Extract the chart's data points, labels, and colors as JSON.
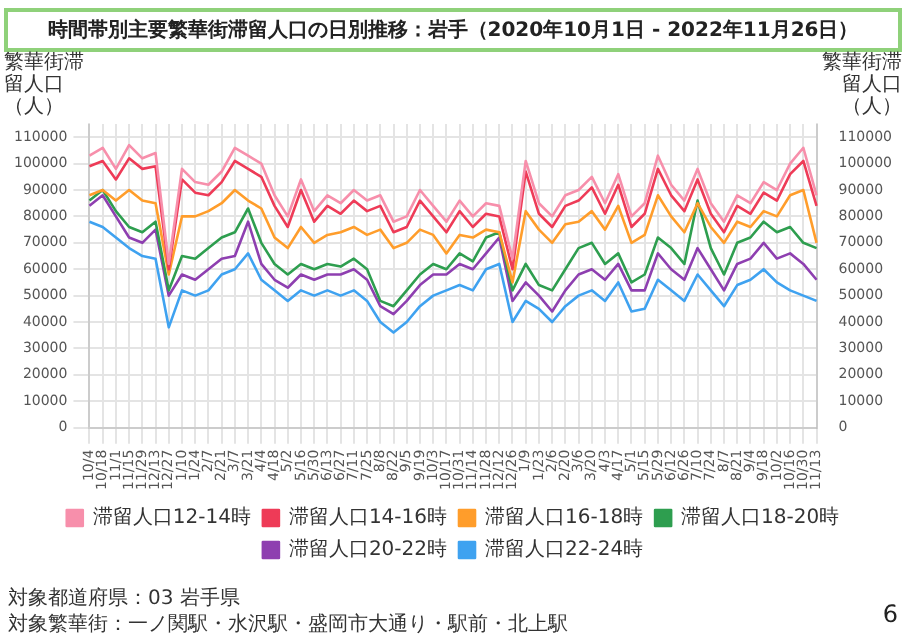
{
  "chart_data": {
    "type": "line",
    "title": "時間帯別主要繁華街滞留人口の日別推移：岩手（2020年10月1日 - 2022年11月26日）",
    "ylabel": "繁華街滞留人口（人）",
    "y2label": "繁華街滞留人口（人）",
    "categories": [
      "10/4",
      "10/18",
      "11/1",
      "11/15",
      "11/29",
      "12/13",
      "12/27",
      "1/10",
      "1/24",
      "2/7",
      "2/21",
      "3/7",
      "3/21",
      "4/4",
      "4/18",
      "5/2",
      "5/16",
      "5/30",
      "6/13",
      "6/27",
      "7/11",
      "7/25",
      "8/8",
      "8/22",
      "9/5",
      "9/19",
      "10/3",
      "10/17",
      "10/31",
      "11/14",
      "11/28",
      "12/12",
      "12/26",
      "1/9",
      "1/23",
      "2/6",
      "2/20",
      "3/6",
      "3/20",
      "4/3",
      "4/17",
      "5/1",
      "5/15",
      "5/29",
      "6/12",
      "6/26",
      "7/10",
      "7/24",
      "8/7",
      "8/21",
      "9/4",
      "9/18",
      "10/2",
      "10/16",
      "10/30",
      "11/13"
    ],
    "series": [
      {
        "name": "滞留人口12-14時",
        "color": "#f78fab",
        "values": [
          103000,
          106000,
          98000,
          107000,
          102000,
          104000,
          62000,
          98000,
          93000,
          92000,
          97000,
          106000,
          103000,
          100000,
          88000,
          80000,
          94000,
          82000,
          88000,
          85000,
          90000,
          86000,
          88000,
          78000,
          80000,
          90000,
          84000,
          78000,
          86000,
          80000,
          85000,
          84000,
          64000,
          101000,
          85000,
          80000,
          88000,
          90000,
          95000,
          85000,
          96000,
          80000,
          85000,
          103000,
          92000,
          86000,
          98000,
          85000,
          78000,
          88000,
          85000,
          93000,
          90000,
          100000,
          106000,
          88000
        ]
      },
      {
        "name": "滞留人口14-16時",
        "color": "#ee3b57",
        "values": [
          99000,
          101000,
          94000,
          102000,
          98000,
          99000,
          60000,
          94000,
          89000,
          88000,
          93000,
          101000,
          98000,
          95000,
          84000,
          76000,
          90000,
          78000,
          84000,
          81000,
          86000,
          82000,
          84000,
          74000,
          76000,
          86000,
          80000,
          74000,
          82000,
          76000,
          81000,
          80000,
          60000,
          97000,
          81000,
          76000,
          84000,
          86000,
          91000,
          81000,
          92000,
          76000,
          81000,
          98000,
          88000,
          82000,
          94000,
          81000,
          74000,
          84000,
          81000,
          89000,
          86000,
          96000,
          101000,
          84000
        ]
      },
      {
        "name": "滞留人口16-18時",
        "color": "#ff9d2b",
        "values": [
          88000,
          90000,
          86000,
          90000,
          86000,
          85000,
          58000,
          80000,
          80000,
          82000,
          85000,
          90000,
          86000,
          83000,
          72000,
          68000,
          76000,
          70000,
          73000,
          74000,
          76000,
          73000,
          75000,
          68000,
          70000,
          75000,
          73000,
          66000,
          73000,
          72000,
          75000,
          74000,
          55000,
          82000,
          75000,
          70000,
          77000,
          78000,
          82000,
          75000,
          84000,
          70000,
          73000,
          88000,
          80000,
          74000,
          85000,
          76000,
          70000,
          78000,
          76000,
          82000,
          80000,
          88000,
          90000,
          70000
        ]
      },
      {
        "name": "滞留人口18-20時",
        "color": "#2e9e4f",
        "values": [
          86000,
          90000,
          82000,
          76000,
          74000,
          78000,
          52000,
          65000,
          64000,
          68000,
          72000,
          74000,
          83000,
          70000,
          62000,
          58000,
          62000,
          60000,
          62000,
          61000,
          64000,
          60000,
          48000,
          46000,
          52000,
          58000,
          62000,
          60000,
          66000,
          63000,
          72000,
          74000,
          52000,
          62000,
          54000,
          52000,
          60000,
          68000,
          70000,
          62000,
          66000,
          55000,
          58000,
          72000,
          68000,
          62000,
          86000,
          68000,
          58000,
          70000,
          72000,
          78000,
          74000,
          76000,
          70000,
          68000
        ]
      },
      {
        "name": "滞留人口20-22時",
        "color": "#8e3fb0",
        "values": [
          84000,
          88000,
          80000,
          72000,
          70000,
          75000,
          50000,
          58000,
          56000,
          60000,
          64000,
          65000,
          78000,
          62000,
          56000,
          53000,
          58000,
          56000,
          58000,
          58000,
          60000,
          56000,
          46000,
          43000,
          48000,
          54000,
          58000,
          58000,
          62000,
          60000,
          66000,
          72000,
          48000,
          55000,
          50000,
          44000,
          52000,
          58000,
          60000,
          56000,
          62000,
          52000,
          52000,
          66000,
          60000,
          56000,
          68000,
          60000,
          52000,
          62000,
          64000,
          70000,
          64000,
          66000,
          62000,
          56000
        ]
      },
      {
        "name": "滞留人口22-24時",
        "color": "#3fa2f0",
        "values": [
          78000,
          76000,
          72000,
          68000,
          65000,
          64000,
          38000,
          52000,
          50000,
          52000,
          58000,
          60000,
          66000,
          56000,
          52000,
          48000,
          52000,
          50000,
          52000,
          50000,
          52000,
          48000,
          40000,
          36000,
          40000,
          46000,
          50000,
          52000,
          54000,
          52000,
          60000,
          62000,
          40000,
          48000,
          45000,
          40000,
          46000,
          50000,
          52000,
          48000,
          55000,
          44000,
          45000,
          56000,
          52000,
          48000,
          58000,
          52000,
          46000,
          54000,
          56000,
          60000,
          55000,
          52000,
          50000,
          48000
        ]
      }
    ],
    "ylim": [
      0,
      115000
    ],
    "yticks": [
      0,
      10000,
      20000,
      30000,
      40000,
      50000,
      60000,
      70000,
      80000,
      90000,
      100000,
      110000
    ],
    "y2lim": [
      0,
      115000
    ],
    "y2ticks": [
      0,
      10000,
      20000,
      30000,
      40000,
      50000,
      60000,
      70000,
      80000,
      90000,
      100000,
      110000
    ],
    "grid": true,
    "legend": "bottom",
    "marker": "none",
    "line_style": "solid",
    "annotations": [
      "対象都道府県：03 岩手県",
      "対象繁華街：一ノ関駅・水沢駅・盛岡市大通り・駅前・北上駅",
      "6"
    ]
  }
}
